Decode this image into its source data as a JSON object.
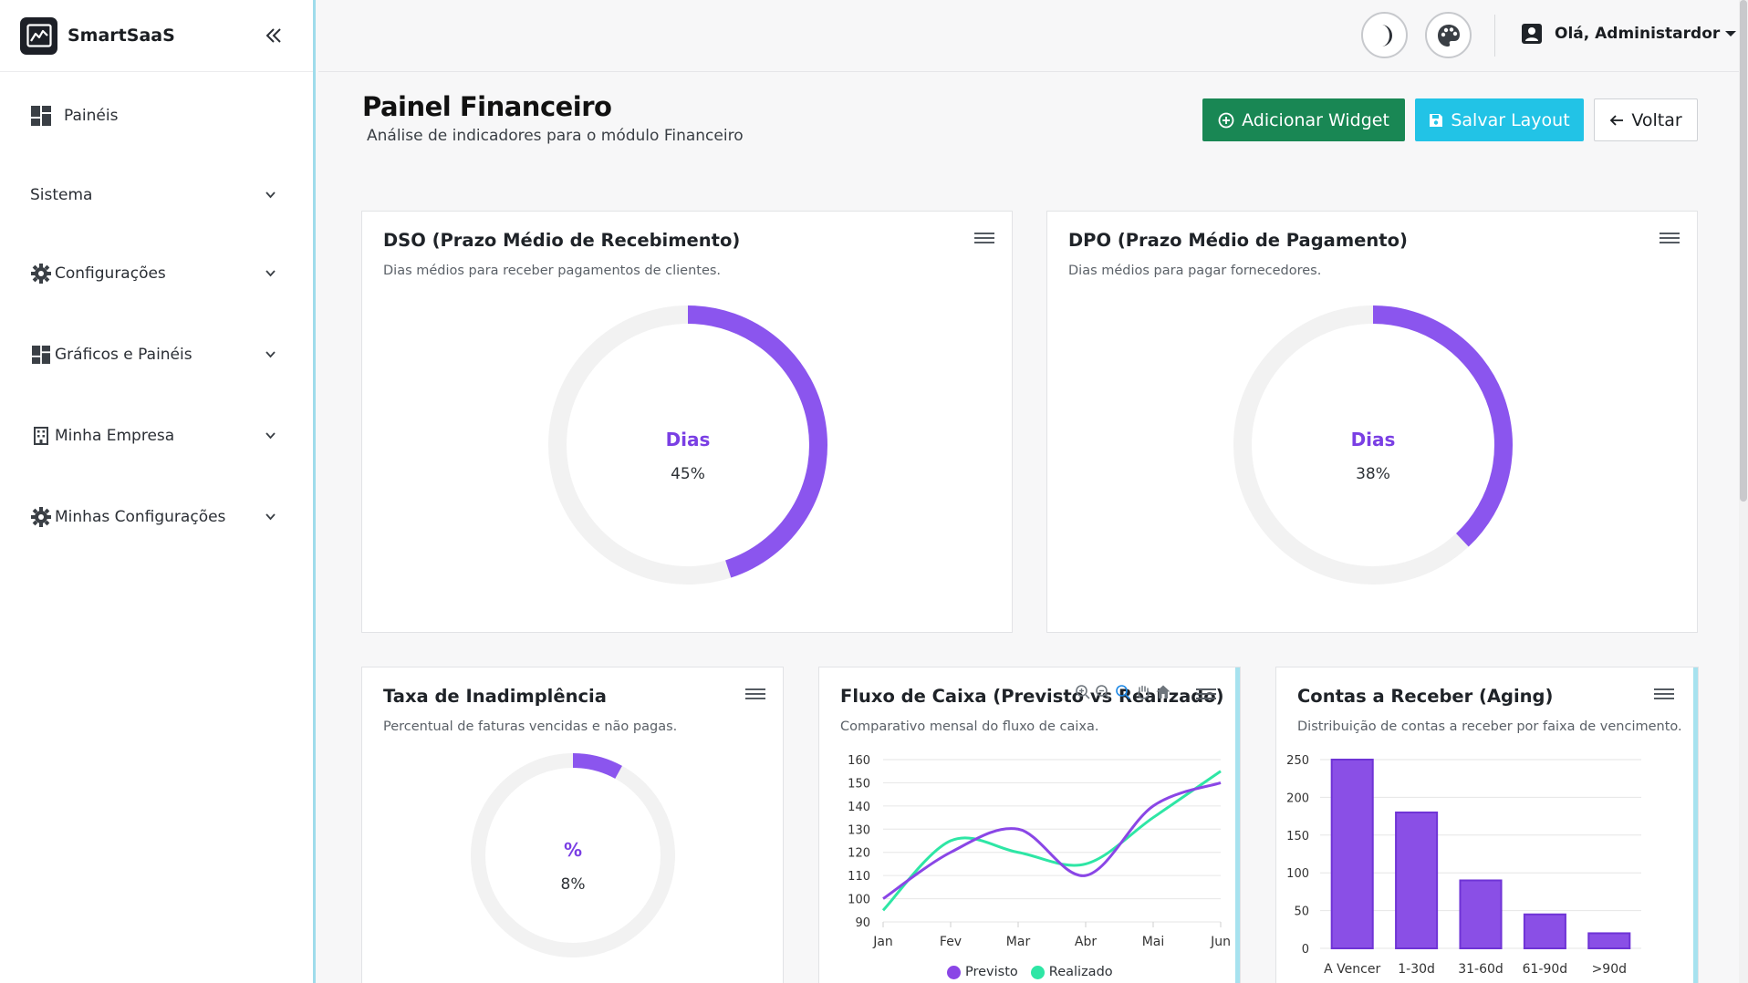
{
  "app": {
    "name": "SmartSaaS"
  },
  "sidebar": {
    "items": [
      {
        "label": "Painéis",
        "icon": "dashboard-icon",
        "expandable": false
      },
      {
        "label": "Sistema",
        "icon": "",
        "expandable": true
      },
      {
        "label": "Configurações",
        "icon": "gear-icon",
        "expandable": true
      },
      {
        "label": "Gráficos e Painéis",
        "icon": "dashboard-icon",
        "expandable": true
      },
      {
        "label": "Minha Empresa",
        "icon": "building-icon",
        "expandable": true
      },
      {
        "label": "Minhas Configurações",
        "icon": "gear-icon",
        "expandable": true
      }
    ]
  },
  "topbar": {
    "user_greeting": "Olá, Administardor"
  },
  "page": {
    "title": "Painel Financeiro",
    "subtitle": "Análise de indicadores para o módulo Financeiro",
    "buttons": {
      "add_widget": "Adicionar Widget",
      "save_layout": "Salvar Layout",
      "back": "Voltar"
    }
  },
  "widgets": {
    "dso": {
      "title": "DSO (Prazo Médio de Recebimento)",
      "subtitle": "Dias médios para receber pagamentos de clientes.",
      "unit": "Dias",
      "value_label": "45%",
      "value": 0.45
    },
    "dpo": {
      "title": "DPO (Prazo Médio de Pagamento)",
      "subtitle": "Dias médios para pagar fornecedores.",
      "unit": "Dias",
      "value_label": "38%",
      "value": 0.38
    },
    "default_rate": {
      "title": "Taxa de Inadimplência",
      "subtitle": "Percentual de faturas vencidas e não pagas.",
      "unit": "%",
      "value_label": "8%",
      "value": 0.08
    },
    "cashflow": {
      "title": "Fluxo de Caixa (Previsto vs Realizado)",
      "subtitle": "Comparativo mensal do fluxo de caixa."
    },
    "aging": {
      "title": "Contas a Receber (Aging)",
      "subtitle": "Distribuição de contas a receber por faixa de vencimento."
    }
  },
  "colors": {
    "accent_purple": "#8b55ee",
    "realizado_green": "#2ee6a5",
    "previsto_purple": "#8a46e6",
    "bar_purple": "#8a4fe6"
  },
  "chart_data": [
    {
      "type": "line",
      "x": [
        "Jan",
        "Fev",
        "Mar",
        "Abr",
        "Mai",
        "Jun"
      ],
      "ylim": [
        90,
        160
      ],
      "yticks": [
        90,
        100,
        110,
        120,
        130,
        140,
        150,
        160
      ],
      "grid": true,
      "legend": "bottom",
      "series": [
        {
          "name": "Previsto",
          "values": [
            100,
            120,
            130,
            110,
            140,
            150
          ]
        },
        {
          "name": "Realizado",
          "values": [
            95,
            125,
            120,
            115,
            135,
            155
          ]
        }
      ]
    },
    {
      "type": "bar",
      "categories": [
        "A Vencer",
        "1-30d",
        "31-60d",
        "61-90d",
        ">90d"
      ],
      "values": [
        250,
        180,
        90,
        45,
        20
      ],
      "ylim": [
        0,
        250
      ],
      "yticks": [
        0,
        50,
        100,
        150,
        200,
        250
      ],
      "grid": true
    }
  ]
}
